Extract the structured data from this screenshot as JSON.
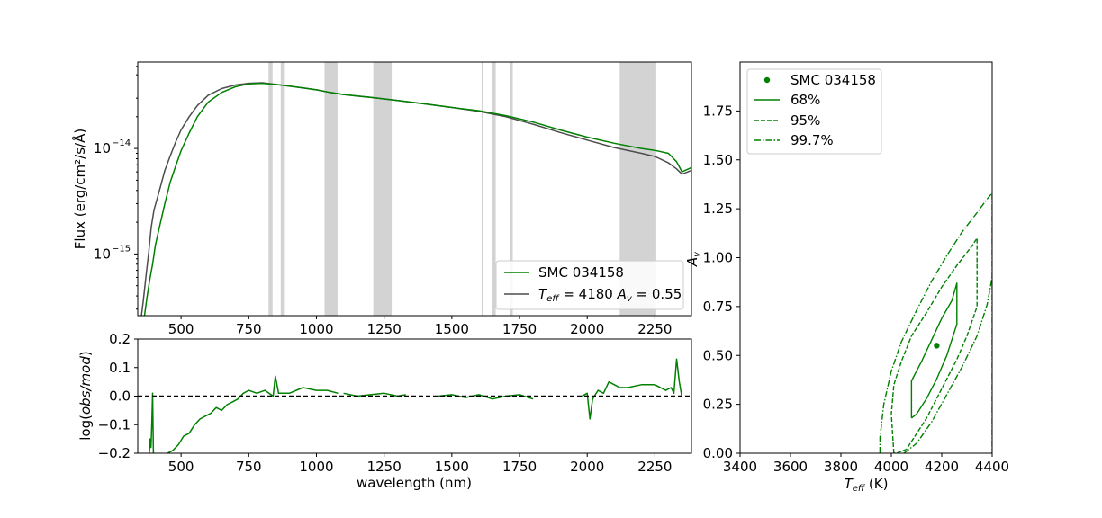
{
  "colors": {
    "observed": "#008000",
    "model": "#4d4d4d",
    "mask": "#d3d3d3",
    "contour": "#008000",
    "zero_line": "#000000"
  },
  "chart_data": [
    {
      "type": "line",
      "panel": "spectrum",
      "xlabel": "",
      "ylabel": "Flux (erg/cm²/s/Å)",
      "yscale": "log",
      "xlim": [
        340,
        2385
      ],
      "ylim": [
        2.6e-16,
        6.6e-14
      ],
      "xticks": [
        500,
        750,
        1000,
        1250,
        1500,
        1750,
        2000,
        2250
      ],
      "yticks": [
        {
          "value": 1e-15,
          "label": "10",
          "exp": "−15"
        },
        {
          "value": 1e-14,
          "label": "10",
          "exp": "−14"
        }
      ],
      "legend": {
        "placement": "lower-right",
        "entries": [
          {
            "label": "SMC 034158",
            "series": "observed"
          },
          {
            "label_main": "T",
            "label_sub": "eff",
            "label_rest": " = 4180 ",
            "label_main2": "A",
            "label_sub2": "v",
            "label_rest2": " = 0.55",
            "series": "model"
          }
        ]
      },
      "masked_ranges": [
        [
          823,
          838
        ],
        [
          868,
          880
        ],
        [
          1030,
          1078
        ],
        [
          1210,
          1278
        ],
        [
          1610,
          1617
        ],
        [
          1648,
          1662
        ],
        [
          1715,
          1725
        ],
        [
          2120,
          2255
        ]
      ],
      "series": [
        {
          "id": "model",
          "x": [
            350,
            360,
            370,
            380,
            390,
            400,
            420,
            440,
            460,
            480,
            500,
            530,
            560,
            600,
            650,
            700,
            750,
            800,
            850,
            900,
            950,
            1000,
            1050,
            1100,
            1150,
            1200,
            1250,
            1300,
            1400,
            1500,
            1600,
            1700,
            1800,
            1900,
            2000,
            2100,
            2200,
            2250,
            2300,
            2330,
            2350,
            2385
          ],
          "y": [
            2.2e-16,
            3.5e-16,
            6e-16,
            1e-15,
            1.8e-15,
            2.6e-15,
            4e-15,
            6.2e-15,
            8.5e-15,
            1.15e-14,
            1.5e-14,
            2e-14,
            2.55e-14,
            3.2e-14,
            3.7e-14,
            4e-14,
            4.15e-14,
            4.2e-14,
            4.05e-14,
            3.9e-14,
            3.75e-14,
            3.6e-14,
            3.4e-14,
            3.25e-14,
            3.15e-14,
            3.05e-14,
            2.95e-14,
            2.85e-14,
            2.65e-14,
            2.45e-14,
            2.25e-14,
            2e-14,
            1.7e-14,
            1.42e-14,
            1.2e-14,
            1.02e-14,
            9e-15,
            8.4e-15,
            7.3e-15,
            6.4e-15,
            5.7e-15,
            6.2e-15
          ]
        },
        {
          "id": "observed",
          "x": [
            355,
            365,
            375,
            385,
            395,
            405,
            420,
            440,
            460,
            480,
            500,
            530,
            560,
            600,
            650,
            700,
            750,
            800,
            850,
            900,
            950,
            1000,
            1050,
            1100,
            1150,
            1200,
            1250,
            1300,
            1400,
            1500,
            1600,
            1700,
            1800,
            1900,
            2000,
            2100,
            2200,
            2250,
            2300,
            2330,
            2350,
            2385
          ],
          "y": [
            1.5e-16,
            2.6e-16,
            4e-16,
            5.8e-16,
            8e-16,
            1.2e-15,
            1.8e-15,
            3e-15,
            4.8e-15,
            6.8e-15,
            9.5e-15,
            1.4e-14,
            2e-14,
            2.75e-14,
            3.4e-14,
            3.85e-14,
            4.1e-14,
            4.15e-14,
            4.05e-14,
            3.9e-14,
            3.75e-14,
            3.6e-14,
            3.4e-14,
            3.25e-14,
            3.15e-14,
            3.05e-14,
            2.95e-14,
            2.85e-14,
            2.65e-14,
            2.45e-14,
            2.28e-14,
            2.05e-14,
            1.78e-14,
            1.5e-14,
            1.28e-14,
            1.12e-14,
            1e-14,
            9.6e-15,
            9e-15,
            7.5e-15,
            6e-15,
            6.6e-15
          ]
        }
      ]
    },
    {
      "type": "line",
      "panel": "residual",
      "xlabel": "wavelength (nm)",
      "ylabel_prefix": "log(",
      "ylabel_italic": "obs/mod",
      "ylabel_suffix": ")",
      "xlim": [
        340,
        2385
      ],
      "ylim": [
        -0.2,
        0.2
      ],
      "xticks": [
        500,
        750,
        1000,
        1250,
        1500,
        1750,
        2000,
        2250
      ],
      "yticks": [
        0.2,
        0.1,
        0.0,
        -0.1,
        -0.2
      ],
      "ytick_labels": [
        "0.2",
        "0.1",
        "0.0",
        "−0.1",
        "−0.2"
      ],
      "reference_line": 0.0,
      "segments": [
        {
          "x": [
            383,
            386,
            389,
            392,
            395,
            398
          ],
          "y": [
            -0.2,
            -0.15,
            -0.18,
            -0.1,
            0.01,
            -0.2
          ]
        },
        {
          "x": [
            450,
            470,
            490,
            510,
            530,
            550,
            570,
            590,
            610,
            630,
            650,
            670,
            690,
            710,
            730,
            750,
            780,
            810,
            840,
            848,
            860,
            900,
            950,
            1000,
            1040,
            1080
          ],
          "y": [
            -0.2,
            -0.19,
            -0.17,
            -0.14,
            -0.13,
            -0.1,
            -0.08,
            -0.07,
            -0.06,
            -0.04,
            -0.05,
            -0.03,
            -0.02,
            -0.01,
            0.01,
            0.02,
            0.01,
            0.02,
            0.0,
            0.07,
            0.01,
            0.01,
            0.03,
            0.02,
            0.02,
            0.01
          ]
        },
        {
          "x": [
            1100,
            1150,
            1200,
            1250,
            1300,
            1330
          ],
          "y": [
            0.01,
            0.0,
            0.005,
            0.01,
            0.0,
            0.005
          ]
        },
        {
          "x": [
            1450,
            1500,
            1550,
            1600,
            1650,
            1700,
            1750,
            1800
          ],
          "y": [
            0.0,
            0.005,
            -0.005,
            0.005,
            -0.01,
            0.0,
            0.005,
            -0.01
          ]
        },
        {
          "x": [
            1980,
            2000,
            2010,
            2020,
            2040,
            2060,
            2080,
            2100,
            2120,
            2150,
            2200,
            2250,
            2290,
            2310,
            2320,
            2330,
            2340,
            2350
          ],
          "y": [
            0.0,
            0.01,
            -0.08,
            -0.01,
            0.02,
            0.01,
            0.05,
            0.04,
            0.03,
            0.03,
            0.04,
            0.04,
            0.02,
            0.03,
            0.01,
            0.13,
            0.05,
            -0.005
          ]
        }
      ]
    },
    {
      "type": "scatter",
      "panel": "confidence",
      "xlabel_main": "T",
      "xlabel_sub": "eff",
      "xlabel_rest": " (K)",
      "ylabel_main": "A",
      "ylabel_sub": "v",
      "xlim": [
        3400,
        4400
      ],
      "ylim": [
        0.0,
        2.0
      ],
      "xticks": [
        3400,
        3600,
        3800,
        4000,
        4200,
        4400
      ],
      "yticks": [
        0.0,
        0.25,
        0.5,
        0.75,
        1.0,
        1.25,
        1.5,
        1.75
      ],
      "ytick_labels": [
        "0.00",
        "0.25",
        "0.50",
        "0.75",
        "1.00",
        "1.25",
        "1.50",
        "1.75"
      ],
      "best_fit": {
        "x": 4180,
        "y": 0.55
      },
      "legend": {
        "placement": "upper-left",
        "entries": [
          {
            "label": "SMC 034158",
            "style": "marker"
          },
          {
            "label": "68%",
            "style": "solid"
          },
          {
            "label": "95%",
            "style": "dashed"
          },
          {
            "label": "99.7%",
            "style": "dashdot"
          }
        ]
      },
      "contours": [
        {
          "level": "68%",
          "style": "solid",
          "x": [
            4080,
            4080,
            4120,
            4160,
            4200,
            4240,
            4260,
            4260,
            4220,
            4180,
            4140,
            4100,
            4080
          ],
          "y": [
            0.18,
            0.37,
            0.47,
            0.58,
            0.69,
            0.78,
            0.87,
            0.66,
            0.5,
            0.38,
            0.28,
            0.2,
            0.18
          ]
        },
        {
          "level": "95%",
          "style": "dashed",
          "x": [
            4010,
            4000,
            4010,
            4040,
            4080,
            4140,
            4200,
            4260,
            4320,
            4340,
            4340,
            4300,
            4260,
            4220,
            4180,
            4140,
            4100,
            4060,
            4020,
            4010
          ],
          "y": [
            0.0,
            0.2,
            0.35,
            0.47,
            0.6,
            0.72,
            0.85,
            0.96,
            1.06,
            1.1,
            0.75,
            0.6,
            0.48,
            0.38,
            0.28,
            0.18,
            0.1,
            0.02,
            0.0,
            0.0
          ]
        },
        {
          "level": "99.7%",
          "style": "dashdot",
          "x": [
            3955,
            3955,
            3970,
            4000,
            4040,
            4100,
            4160,
            4220,
            4280,
            4340,
            4380,
            4400
          ],
          "y": [
            0.0,
            0.08,
            0.25,
            0.42,
            0.57,
            0.73,
            0.88,
            1.01,
            1.13,
            1.23,
            1.3,
            1.33
          ]
        },
        {
          "level": "99.7%",
          "style": "dashdot",
          "x": [
            4400,
            4400
          ],
          "y": [
            1.33,
            0.0
          ]
        },
        {
          "level": "99.7%",
          "style": "dashdot",
          "x": [
            4050,
            4100,
            4160,
            4220,
            4280,
            4340,
            4380,
            4400
          ],
          "y": [
            0.0,
            0.05,
            0.16,
            0.3,
            0.44,
            0.6,
            0.76,
            0.9
          ]
        }
      ]
    }
  ]
}
